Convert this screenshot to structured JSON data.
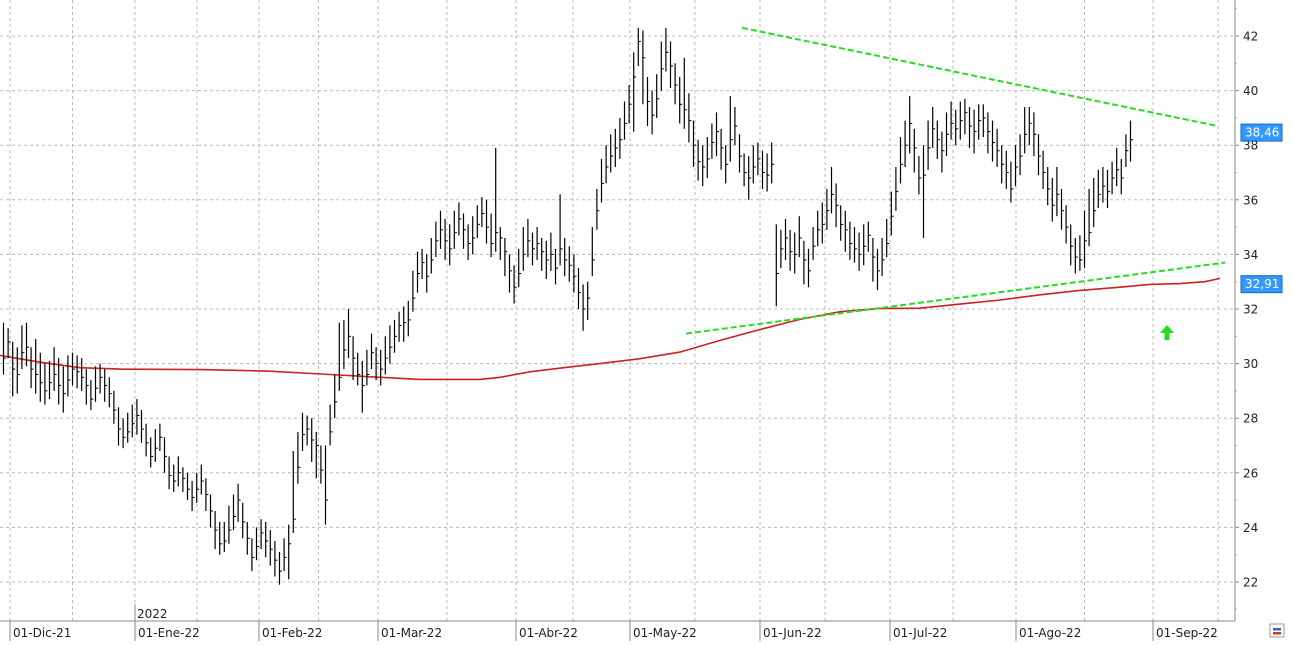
{
  "chart_data": {
    "type": "ohlc",
    "year_marker": "2022",
    "x_tick_labels": [
      "01-Dic-21",
      "01-Ene-22",
      "01-Feb-22",
      "01-Mar-22",
      "01-Abr-22",
      "01-May-22",
      "01-Jun-22",
      "01-Jul-22",
      "01-Ago-22",
      "01-Sep-22"
    ],
    "y_ticks": [
      22,
      24,
      26,
      28,
      30,
      32,
      34,
      36,
      38,
      40,
      42
    ],
    "ylim": [
      20.5,
      43.2
    ],
    "grid": true,
    "last_price_label": "38,46",
    "last_price": 38.46,
    "ma_label": "32,91",
    "ma_value": 32.91,
    "colors": {
      "bars": "#000000",
      "moving_average": "#cc2222",
      "trendlines": "#22dd22",
      "label_bg": "#3399ff",
      "arrow": "#22dd22",
      "grid": "#b8b8b8"
    },
    "bars": [
      [
        30.2,
        31.5,
        29.6
      ],
      [
        30.8,
        31.3,
        30.2
      ],
      [
        29.8,
        30.8,
        28.8
      ],
      [
        29.6,
        30.6,
        28.9
      ],
      [
        30.4,
        31.4,
        29.8
      ],
      [
        30.6,
        31.5,
        29.9
      ],
      [
        29.8,
        30.6,
        29.1
      ],
      [
        29.6,
        30.9,
        28.9
      ],
      [
        29.3,
        30.4,
        28.6
      ],
      [
        29.0,
        30.0,
        28.5
      ],
      [
        29.3,
        30.1,
        28.7
      ],
      [
        29.6,
        30.6,
        29.0
      ],
      [
        29.2,
        30.2,
        28.5
      ],
      [
        28.9,
        29.9,
        28.2
      ],
      [
        29.4,
        30.3,
        28.8
      ],
      [
        29.8,
        30.4,
        29.2
      ],
      [
        29.7,
        30.3,
        29.1
      ],
      [
        29.5,
        30.2,
        29.0
      ],
      [
        29.2,
        29.8,
        28.5
      ],
      [
        28.7,
        29.4,
        28.3
      ],
      [
        29.1,
        29.9,
        28.6
      ],
      [
        29.5,
        30.0,
        28.9
      ],
      [
        29.2,
        29.8,
        28.6
      ],
      [
        28.9,
        29.5,
        28.4
      ],
      [
        28.3,
        29.0,
        27.8
      ],
      [
        27.6,
        28.4,
        27.0
      ],
      [
        27.3,
        28.0,
        26.9
      ],
      [
        27.5,
        28.2,
        27.1
      ],
      [
        27.8,
        28.5,
        27.3
      ],
      [
        28.1,
        28.7,
        27.4
      ],
      [
        27.6,
        28.3,
        27.1
      ],
      [
        27.1,
        27.8,
        26.6
      ],
      [
        26.6,
        27.3,
        26.2
      ],
      [
        26.9,
        27.6,
        26.4
      ],
      [
        27.3,
        27.8,
        26.8
      ],
      [
        26.6,
        27.3,
        26.0
      ],
      [
        25.9,
        26.6,
        25.4
      ],
      [
        25.7,
        26.3,
        25.3
      ],
      [
        26.0,
        26.6,
        25.5
      ],
      [
        25.8,
        26.2,
        25.3
      ],
      [
        25.4,
        26.0,
        25.0
      ],
      [
        25.1,
        25.7,
        24.6
      ],
      [
        25.4,
        26.0,
        24.9
      ],
      [
        25.7,
        26.3,
        25.2
      ],
      [
        25.2,
        25.8,
        24.6
      ],
      [
        24.6,
        25.2,
        24.0
      ],
      [
        23.9,
        24.6,
        23.2
      ],
      [
        23.4,
        24.2,
        23.0
      ],
      [
        23.5,
        24.2,
        23.1
      ],
      [
        23.9,
        24.8,
        23.4
      ],
      [
        24.4,
        25.2,
        23.9
      ],
      [
        25.0,
        25.6,
        24.2
      ],
      [
        24.2,
        24.9,
        23.6
      ],
      [
        23.6,
        24.2,
        23.0
      ],
      [
        22.9,
        23.6,
        22.4
      ],
      [
        23.3,
        24.0,
        22.8
      ],
      [
        23.8,
        24.3,
        23.2
      ],
      [
        23.5,
        24.2,
        22.9
      ],
      [
        23.2,
        23.9,
        22.6
      ],
      [
        22.8,
        23.5,
        22.2
      ],
      [
        22.4,
        23.1,
        21.9
      ],
      [
        22.9,
        23.6,
        22.4
      ],
      [
        23.4,
        24.1,
        22.1
      ],
      [
        24.3,
        26.8,
        23.8
      ],
      [
        26.2,
        27.5,
        25.6
      ],
      [
        27.4,
        28.2,
        26.8
      ],
      [
        27.6,
        28.1,
        27.0
      ],
      [
        27.2,
        28.0,
        26.4
      ],
      [
        27.0,
        27.5,
        25.8
      ],
      [
        26.1,
        27.0,
        25.6
      ],
      [
        25.0,
        27.0,
        24.1
      ],
      [
        27.5,
        28.5,
        27.0
      ],
      [
        28.6,
        29.6,
        28.0
      ],
      [
        29.5,
        31.5,
        29.0
      ],
      [
        30.5,
        31.6,
        29.8
      ],
      [
        31.0,
        32.0,
        30.2
      ],
      [
        30.2,
        31.0,
        29.4
      ],
      [
        29.6,
        30.4,
        29.2
      ],
      [
        29.2,
        30.1,
        28.2
      ],
      [
        29.6,
        30.5,
        29.2
      ],
      [
        30.4,
        31.1,
        29.8
      ],
      [
        30.0,
        30.6,
        29.4
      ],
      [
        29.8,
        30.5,
        29.2
      ],
      [
        30.2,
        31.0,
        29.6
      ],
      [
        30.6,
        31.4,
        30.0
      ],
      [
        31.0,
        31.6,
        30.4
      ],
      [
        31.4,
        31.9,
        30.8
      ],
      [
        31.5,
        32.1,
        30.8
      ],
      [
        31.6,
        32.3,
        31.0
      ],
      [
        32.4,
        33.4,
        31.9
      ],
      [
        33.3,
        34.1,
        32.6
      ],
      [
        33.7,
        34.2,
        33.1
      ],
      [
        33.2,
        34.0,
        32.6
      ],
      [
        33.8,
        34.6,
        33.3
      ],
      [
        34.5,
        35.2,
        33.9
      ],
      [
        34.9,
        35.6,
        34.2
      ],
      [
        34.5,
        35.3,
        33.8
      ],
      [
        34.2,
        35.1,
        33.6
      ],
      [
        34.8,
        35.6,
        34.2
      ],
      [
        35.3,
        35.9,
        34.7
      ],
      [
        34.9,
        35.5,
        34.2
      ],
      [
        34.4,
        35.1,
        33.8
      ],
      [
        34.6,
        35.4,
        34.0
      ],
      [
        35.1,
        35.8,
        34.6
      ],
      [
        35.5,
        36.1,
        35.0
      ],
      [
        35.0,
        36.0,
        34.4
      ],
      [
        34.4,
        35.5,
        33.9
      ],
      [
        34.8,
        37.9,
        34.1
      ],
      [
        34.6,
        35.0,
        33.8
      ],
      [
        34.1,
        34.6,
        33.2
      ],
      [
        33.4,
        34.0,
        32.6
      ],
      [
        32.8,
        33.6,
        32.2
      ],
      [
        33.3,
        34.2,
        32.8
      ],
      [
        34.0,
        35.0,
        33.4
      ],
      [
        34.5,
        35.3,
        33.9
      ],
      [
        34.2,
        34.8,
        33.6
      ],
      [
        34.4,
        35.0,
        33.8
      ],
      [
        34.1,
        34.6,
        33.4
      ],
      [
        33.8,
        34.5,
        33.1
      ],
      [
        34.0,
        34.8,
        33.4
      ],
      [
        33.5,
        34.2,
        32.9
      ],
      [
        34.2,
        36.2,
        33.6
      ],
      [
        33.8,
        34.6,
        33.2
      ],
      [
        33.6,
        34.3,
        33.0
      ],
      [
        33.2,
        34.0,
        32.6
      ],
      [
        32.6,
        33.5,
        32.0
      ],
      [
        32.0,
        32.9,
        31.2
      ],
      [
        32.4,
        33.0,
        31.6
      ],
      [
        33.8,
        35.0,
        33.2
      ],
      [
        35.6,
        36.4,
        34.9
      ],
      [
        36.6,
        37.5,
        35.9
      ],
      [
        37.2,
        38.0,
        36.6
      ],
      [
        37.6,
        38.4,
        37.0
      ],
      [
        37.9,
        38.6,
        37.2
      ],
      [
        38.2,
        39.0,
        37.5
      ],
      [
        38.8,
        39.6,
        38.2
      ],
      [
        39.5,
        40.2,
        38.8
      ],
      [
        40.5,
        41.4,
        38.5
      ],
      [
        41.8,
        42.3,
        40.9
      ],
      [
        41.2,
        42.2,
        39.5
      ],
      [
        39.6,
        40.5,
        38.7
      ],
      [
        39.1,
        40.0,
        38.4
      ],
      [
        39.7,
        40.6,
        39.0
      ],
      [
        40.8,
        41.8,
        40.0
      ],
      [
        41.4,
        42.3,
        40.7
      ],
      [
        40.9,
        41.8,
        40.1
      ],
      [
        40.2,
        41.0,
        39.5
      ],
      [
        39.5,
        40.5,
        38.8
      ],
      [
        39.3,
        41.2,
        38.6
      ],
      [
        38.9,
        39.9,
        38.1
      ],
      [
        38.0,
        38.9,
        37.2
      ],
      [
        37.4,
        38.2,
        36.7
      ],
      [
        37.2,
        38.0,
        36.5
      ],
      [
        37.5,
        38.3,
        36.8
      ],
      [
        38.1,
        38.8,
        37.5
      ],
      [
        38.5,
        39.2,
        37.6
      ],
      [
        37.9,
        38.6,
        37.1
      ],
      [
        37.3,
        38.0,
        36.6
      ],
      [
        38.2,
        39.8,
        37.4
      ],
      [
        38.7,
        39.4,
        38.0
      ],
      [
        37.6,
        38.4,
        37.0
      ],
      [
        37.0,
        37.7,
        36.5
      ],
      [
        36.8,
        37.6,
        36.0
      ],
      [
        37.2,
        38.0,
        36.6
      ],
      [
        37.5,
        38.1,
        36.9
      ],
      [
        37.0,
        37.8,
        36.4
      ],
      [
        36.9,
        37.7,
        36.3
      ],
      [
        37.3,
        38.1,
        36.6
      ],
      [
        33.3,
        35.1,
        32.1
      ],
      [
        34.2,
        34.9,
        33.5
      ],
      [
        34.6,
        35.3,
        33.8
      ],
      [
        34.1,
        34.9,
        33.4
      ],
      [
        34.0,
        34.8,
        33.3
      ],
      [
        34.6,
        35.4,
        33.9
      ],
      [
        33.8,
        34.5,
        32.9
      ],
      [
        33.4,
        34.2,
        32.8
      ],
      [
        34.3,
        35.0,
        33.8
      ],
      [
        34.9,
        35.6,
        34.3
      ],
      [
        35.1,
        35.9,
        34.4
      ],
      [
        35.6,
        36.4,
        34.9
      ],
      [
        36.2,
        37.2,
        35.5
      ],
      [
        35.8,
        36.6,
        35.0
      ],
      [
        35.1,
        35.8,
        34.5
      ],
      [
        34.9,
        35.6,
        34.1
      ],
      [
        34.4,
        35.2,
        33.8
      ],
      [
        34.2,
        35.0,
        33.7
      ],
      [
        34.0,
        34.8,
        33.4
      ],
      [
        34.3,
        35.1,
        33.6
      ],
      [
        34.7,
        35.2,
        34.1
      ],
      [
        33.9,
        34.6,
        33.0
      ],
      [
        33.4,
        34.2,
        32.7
      ],
      [
        33.8,
        34.6,
        33.2
      ],
      [
        34.4,
        35.3,
        33.9
      ],
      [
        35.4,
        36.3,
        34.7
      ],
      [
        36.3,
        37.2,
        35.6
      ],
      [
        37.3,
        38.3,
        36.6
      ],
      [
        38.0,
        38.9,
        37.2
      ],
      [
        38.8,
        39.8,
        37.7
      ],
      [
        37.9,
        38.6,
        37.0
      ],
      [
        36.8,
        37.6,
        36.2
      ],
      [
        36.9,
        38.0,
        34.6
      ],
      [
        37.9,
        38.9,
        37.1
      ],
      [
        38.6,
        39.4,
        37.9
      ],
      [
        38.2,
        38.9,
        37.5
      ],
      [
        37.8,
        38.5,
        37.0
      ],
      [
        38.4,
        39.2,
        37.6
      ],
      [
        38.8,
        39.6,
        38.2
      ],
      [
        38.6,
        39.3,
        38.0
      ],
      [
        38.9,
        39.6,
        38.2
      ],
      [
        39.2,
        39.7,
        38.4
      ],
      [
        38.7,
        39.4,
        37.9
      ],
      [
        38.5,
        39.3,
        37.7
      ],
      [
        38.9,
        39.5,
        38.2
      ],
      [
        39.0,
        39.5,
        38.3
      ],
      [
        38.5,
        39.2,
        37.7
      ],
      [
        38.1,
        38.9,
        37.4
      ],
      [
        37.8,
        38.6,
        37.2
      ],
      [
        37.3,
        38.0,
        36.6
      ],
      [
        37.0,
        37.8,
        36.4
      ],
      [
        36.4,
        37.4,
        35.9
      ],
      [
        37.2,
        38.0,
        36.5
      ],
      [
        37.6,
        38.4,
        36.9
      ],
      [
        38.4,
        39.4,
        37.7
      ],
      [
        38.8,
        39.4,
        38.0
      ],
      [
        38.4,
        39.2,
        37.6
      ],
      [
        37.6,
        38.4,
        36.9
      ],
      [
        37.0,
        37.8,
        36.4
      ],
      [
        36.4,
        37.2,
        35.8
      ],
      [
        35.8,
        36.8,
        35.2
      ],
      [
        36.2,
        37.2,
        35.4
      ],
      [
        35.6,
        36.4,
        34.9
      ],
      [
        35.0,
        35.8,
        34.4
      ],
      [
        34.3,
        35.1,
        33.6
      ],
      [
        33.9,
        34.6,
        33.3
      ],
      [
        33.8,
        34.7,
        33.4
      ],
      [
        34.5,
        35.6,
        33.5
      ],
      [
        34.8,
        36.4,
        34.3
      ],
      [
        35.6,
        36.8,
        35.0
      ],
      [
        36.2,
        37.1,
        35.7
      ],
      [
        36.5,
        37.2,
        35.9
      ],
      [
        36.3,
        37.1,
        35.7
      ],
      [
        36.8,
        37.4,
        36.2
      ],
      [
        37.1,
        37.9,
        36.5
      ],
      [
        36.8,
        37.5,
        36.2
      ],
      [
        37.8,
        38.4,
        37.2
      ],
      [
        38.2,
        38.9,
        37.4
      ]
    ],
    "moving_average": [
      [
        0,
        30.3
      ],
      [
        40,
        30.05
      ],
      [
        80,
        29.85
      ],
      [
        120,
        29.8
      ],
      [
        200,
        29.78
      ],
      [
        270,
        29.72
      ],
      [
        330,
        29.6
      ],
      [
        380,
        29.5
      ],
      [
        420,
        29.42
      ],
      [
        480,
        29.42
      ],
      [
        500,
        29.5
      ],
      [
        530,
        29.7
      ],
      [
        570,
        29.88
      ],
      [
        600,
        30.0
      ],
      [
        640,
        30.18
      ],
      [
        680,
        30.42
      ],
      [
        720,
        30.85
      ],
      [
        760,
        31.25
      ],
      [
        800,
        31.62
      ],
      [
        840,
        31.9
      ],
      [
        880,
        32.02
      ],
      [
        920,
        32.03
      ],
      [
        960,
        32.18
      ],
      [
        1000,
        32.33
      ],
      [
        1040,
        32.52
      ],
      [
        1080,
        32.68
      ],
      [
        1120,
        32.8
      ],
      [
        1150,
        32.9
      ],
      [
        1180,
        32.93
      ],
      [
        1205,
        33.0
      ],
      [
        1220,
        33.12
      ]
    ],
    "upper_trendline": [
      [
        742,
        42.3
      ],
      [
        1218,
        38.7
      ]
    ],
    "lower_trendline": [
      [
        686,
        31.1
      ],
      [
        1225,
        33.7
      ]
    ]
  }
}
